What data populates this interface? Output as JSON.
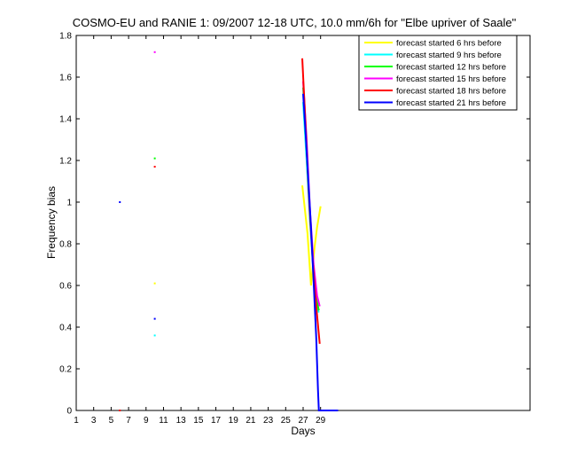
{
  "chart_data": {
    "type": "line",
    "title": "COSMO-EU and RANIE 1: 09/2007 12-18 UTC, 10.0 mm/6h for \"Elbe upriver of Saale\"",
    "xlabel": "Days",
    "ylabel": "Frequency bias",
    "xlim": [
      1,
      53
    ],
    "ylim": [
      0,
      1.8
    ],
    "xticks": [
      1,
      3,
      5,
      7,
      9,
      11,
      13,
      15,
      17,
      19,
      21,
      23,
      25,
      27,
      29
    ],
    "xtick_labels": [
      "1",
      "3",
      "5",
      "7",
      "9",
      "11",
      "13",
      "15",
      "17",
      "19",
      "21",
      "23",
      "25",
      "27",
      "29"
    ],
    "yticks": [
      0,
      0.2,
      0.4,
      0.6,
      0.8,
      1,
      1.2,
      1.4,
      1.6,
      1.8
    ],
    "ytick_labels": [
      "0",
      "0.2",
      "0.4",
      "0.6",
      "0.8",
      "1",
      "1.2",
      "1.4",
      "1.6",
      "1.8"
    ],
    "legend_position": "top-right",
    "series": [
      {
        "name": "forecast started 6 hrs before",
        "color": "#ffff00",
        "points": [
          [
            10,
            0.61
          ],
          [
            26.9,
            1.08
          ],
          [
            27.5,
            0.85
          ],
          [
            27.9,
            0.6
          ],
          [
            28.3,
            0.78
          ],
          [
            28.6,
            0.88
          ],
          [
            29.0,
            0.98
          ]
        ]
      },
      {
        "name": "forecast started 9 hrs before",
        "color": "#00ffff",
        "points": [
          [
            10,
            0.36
          ],
          [
            27.0,
            1.48
          ],
          [
            27.4,
            1.2
          ],
          [
            27.8,
            0.9
          ],
          [
            28.2,
            0.65
          ],
          [
            28.5,
            0.5
          ],
          [
            28.8,
            0.47
          ]
        ]
      },
      {
        "name": "forecast started 12 hrs before",
        "color": "#00ff00",
        "points": [
          [
            10,
            1.21
          ],
          [
            27.0,
            1.55
          ],
          [
            27.4,
            1.25
          ],
          [
            27.8,
            0.92
          ],
          [
            28.2,
            0.68
          ],
          [
            28.6,
            0.52
          ],
          [
            28.8,
            0.48
          ]
        ]
      },
      {
        "name": "forecast started 15 hrs before",
        "color": "#ff00ff",
        "points": [
          [
            10,
            1.72
          ],
          [
            27.0,
            1.58
          ],
          [
            27.4,
            1.3
          ],
          [
            27.8,
            0.95
          ],
          [
            28.2,
            0.7
          ],
          [
            28.6,
            0.55
          ],
          [
            28.9,
            0.5
          ]
        ]
      },
      {
        "name": "forecast started 18 hrs before",
        "color": "#ff0000",
        "points": [
          [
            6,
            0.0
          ],
          [
            10,
            1.17
          ],
          [
            26.9,
            1.69
          ],
          [
            27.3,
            1.35
          ],
          [
            27.7,
            1.0
          ],
          [
            28.1,
            0.72
          ],
          [
            28.5,
            0.5
          ],
          [
            28.9,
            0.32
          ]
        ]
      },
      {
        "name": "forecast started 21 hrs before",
        "color": "#0000ff",
        "points": [
          [
            6,
            1.0
          ],
          [
            10,
            0.44
          ],
          [
            27.0,
            1.52
          ],
          [
            27.3,
            1.32
          ],
          [
            27.6,
            1.1
          ],
          [
            27.9,
            0.88
          ],
          [
            28.2,
            0.62
          ],
          [
            28.5,
            0.35
          ],
          [
            28.7,
            0.1
          ],
          [
            28.8,
            0.0
          ],
          [
            30,
            0.0
          ],
          [
            31,
            0.0
          ]
        ]
      }
    ]
  }
}
